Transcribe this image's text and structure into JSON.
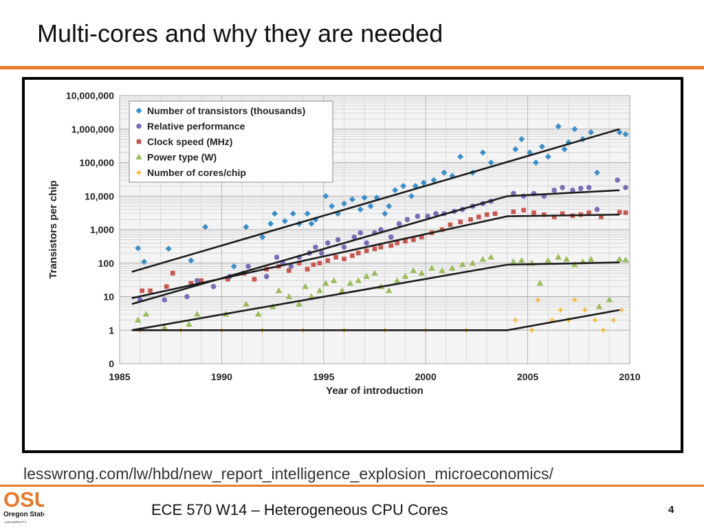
{
  "slide": {
    "title": "Multi-cores and why they are needed",
    "source": "lesswrong.com/lw/hbd/new_report_intelligence_explosion_microeconomics/",
    "footer": "ECE 570 W14 – Heterogeneous CPU Cores",
    "page_number": "4"
  },
  "logo": {
    "text": "OSU",
    "subtitle": "Oregon State",
    "university": "UNIVERSITY"
  },
  "colors": {
    "accent": "#e8782a"
  },
  "chart_data": {
    "type": "scatter",
    "xlabel": "Year of introduction",
    "ylabel": "Transistors per chip",
    "xlim": [
      1985,
      2010
    ],
    "x_ticks": [
      1985,
      1990,
      1995,
      2000,
      2005,
      2010
    ],
    "y_scale": "log",
    "y_ticks": [
      {
        "value": 0,
        "label": "0"
      },
      {
        "value": 1,
        "label": "1"
      },
      {
        "value": 10,
        "label": "10"
      },
      {
        "value": 100,
        "label": "100"
      },
      {
        "value": 1000,
        "label": "1,000"
      },
      {
        "value": 10000,
        "label": "10,000"
      },
      {
        "value": 100000,
        "label": "100,000"
      },
      {
        "value": 1000000,
        "label": "1,000,000"
      },
      {
        "value": 10000000,
        "label": "10,000,000"
      }
    ],
    "grid": true,
    "legend_position": "top-left",
    "series": [
      {
        "name": "Number of transistors (thousands)",
        "color": "#3a8fc9",
        "marker": "diamond",
        "points": [
          [
            1985.9,
            280
          ],
          [
            1986.2,
            110
          ],
          [
            1987.4,
            270
          ],
          [
            1988.5,
            120
          ],
          [
            1989.2,
            1200
          ],
          [
            1990.6,
            80
          ],
          [
            1991.2,
            1200
          ],
          [
            1992.0,
            600
          ],
          [
            1992.4,
            1500
          ],
          [
            1992.6,
            3000
          ],
          [
            1993.1,
            1800
          ],
          [
            1993.5,
            3000
          ],
          [
            1993.8,
            1500
          ],
          [
            1994.2,
            3000
          ],
          [
            1994.4,
            1500
          ],
          [
            1994.6,
            2000
          ],
          [
            1995.1,
            10000
          ],
          [
            1995.4,
            5000
          ],
          [
            1995.7,
            3000
          ],
          [
            1996.0,
            6000
          ],
          [
            1996.4,
            8000
          ],
          [
            1996.8,
            4000
          ],
          [
            1997.0,
            9000
          ],
          [
            1997.3,
            5000
          ],
          [
            1997.6,
            9000
          ],
          [
            1998.0,
            3000
          ],
          [
            1998.2,
            5000
          ],
          [
            1998.5,
            15000
          ],
          [
            1998.9,
            20000
          ],
          [
            1999.3,
            10000
          ],
          [
            1999.5,
            20000
          ],
          [
            1999.9,
            25000
          ],
          [
            2000.4,
            30000
          ],
          [
            2000.9,
            50000
          ],
          [
            2001.3,
            40000
          ],
          [
            2001.7,
            150000
          ],
          [
            2002.3,
            50000
          ],
          [
            2002.8,
            200000
          ],
          [
            2003.2,
            100000
          ],
          [
            2004.4,
            250000
          ],
          [
            2004.7,
            500000
          ],
          [
            2005.1,
            200000
          ],
          [
            2005.4,
            100000
          ],
          [
            2005.7,
            300000
          ],
          [
            2006.0,
            150000
          ],
          [
            2006.5,
            1200000
          ],
          [
            2006.8,
            250000
          ],
          [
            2007.0,
            400000
          ],
          [
            2007.3,
            1000000
          ],
          [
            2007.7,
            500000
          ],
          [
            2008.1,
            800000
          ],
          [
            2008.4,
            50000
          ],
          [
            2009.5,
            800000
          ],
          [
            2009.8,
            700000
          ]
        ]
      },
      {
        "name": "Relative performance",
        "color": "#7a6cb8",
        "marker": "circle",
        "points": [
          [
            1986.0,
            8
          ],
          [
            1987.2,
            8
          ],
          [
            1988.3,
            10
          ],
          [
            1988.8,
            30
          ],
          [
            1989.6,
            20
          ],
          [
            1990.4,
            40
          ],
          [
            1991.3,
            80
          ],
          [
            1992.2,
            40
          ],
          [
            1992.7,
            150
          ],
          [
            1993.0,
            100
          ],
          [
            1993.4,
            80
          ],
          [
            1993.8,
            150
          ],
          [
            1994.3,
            200
          ],
          [
            1994.6,
            300
          ],
          [
            1994.9,
            200
          ],
          [
            1995.2,
            400
          ],
          [
            1995.7,
            500
          ],
          [
            1996.0,
            300
          ],
          [
            1996.5,
            600
          ],
          [
            1996.8,
            800
          ],
          [
            1997.1,
            400
          ],
          [
            1997.5,
            800
          ],
          [
            1997.8,
            1000
          ],
          [
            1998.3,
            600
          ],
          [
            1998.7,
            1500
          ],
          [
            1999.1,
            2000
          ],
          [
            1999.6,
            2500
          ],
          [
            2000.1,
            2500
          ],
          [
            2000.5,
            3000
          ],
          [
            2000.9,
            3000
          ],
          [
            2001.4,
            3500
          ],
          [
            2001.8,
            4000
          ],
          [
            2002.3,
            5000
          ],
          [
            2002.8,
            6000
          ],
          [
            2003.2,
            7000
          ],
          [
            2004.3,
            12000
          ],
          [
            2004.8,
            10000
          ],
          [
            2005.3,
            12000
          ],
          [
            2005.8,
            10000
          ],
          [
            2006.3,
            15000
          ],
          [
            2006.7,
            18000
          ],
          [
            2007.2,
            15000
          ],
          [
            2007.6,
            17000
          ],
          [
            2008.0,
            18000
          ],
          [
            2008.4,
            4000
          ],
          [
            2009.4,
            30000
          ],
          [
            2009.8,
            18000
          ]
        ]
      },
      {
        "name": "Clock speed (MHz)",
        "color": "#c9574e",
        "marker": "square",
        "points": [
          [
            1986.1,
            15
          ],
          [
            1986.5,
            15
          ],
          [
            1987.3,
            20
          ],
          [
            1987.6,
            50
          ],
          [
            1988.5,
            25
          ],
          [
            1989.0,
            30
          ],
          [
            1990.3,
            33
          ],
          [
            1991.1,
            50
          ],
          [
            1991.6,
            33
          ],
          [
            1992.2,
            66
          ],
          [
            1992.8,
            80
          ],
          [
            1993.3,
            60
          ],
          [
            1993.8,
            100
          ],
          [
            1994.2,
            66
          ],
          [
            1994.5,
            90
          ],
          [
            1994.8,
            100
          ],
          [
            1995.2,
            120
          ],
          [
            1995.6,
            150
          ],
          [
            1996.0,
            133
          ],
          [
            1996.4,
            166
          ],
          [
            1996.7,
            200
          ],
          [
            1997.1,
            233
          ],
          [
            1997.5,
            266
          ],
          [
            1997.8,
            300
          ],
          [
            1998.3,
            333
          ],
          [
            1998.6,
            400
          ],
          [
            1999.0,
            450
          ],
          [
            1999.4,
            500
          ],
          [
            1999.8,
            600
          ],
          [
            2000.3,
            800
          ],
          [
            2000.8,
            1000
          ],
          [
            2001.2,
            1400
          ],
          [
            2001.7,
            1700
          ],
          [
            2002.2,
            2000
          ],
          [
            2002.6,
            2400
          ],
          [
            2003.0,
            2800
          ],
          [
            2003.4,
            3000
          ],
          [
            2004.3,
            3400
          ],
          [
            2004.8,
            3800
          ],
          [
            2005.3,
            3200
          ],
          [
            2005.8,
            2800
          ],
          [
            2006.3,
            2400
          ],
          [
            2006.7,
            3000
          ],
          [
            2007.2,
            2600
          ],
          [
            2007.6,
            2800
          ],
          [
            2008.0,
            3200
          ],
          [
            2008.6,
            2400
          ],
          [
            2009.5,
            3300
          ],
          [
            2009.8,
            3200
          ]
        ]
      },
      {
        "name": "Power type (W)",
        "color": "#9cbb59",
        "marker": "triangle",
        "points": [
          [
            1985.9,
            2
          ],
          [
            1986.3,
            3
          ],
          [
            1987.2,
            1.2
          ],
          [
            1988.4,
            1.5
          ],
          [
            1988.8,
            3
          ],
          [
            1990.2,
            3
          ],
          [
            1991.2,
            6
          ],
          [
            1991.8,
            3
          ],
          [
            1992.5,
            5
          ],
          [
            1992.8,
            15
          ],
          [
            1993.3,
            10
          ],
          [
            1993.8,
            6
          ],
          [
            1994.1,
            20
          ],
          [
            1994.4,
            10
          ],
          [
            1994.8,
            15
          ],
          [
            1995.1,
            25
          ],
          [
            1995.5,
            30
          ],
          [
            1995.9,
            15
          ],
          [
            1996.3,
            25
          ],
          [
            1996.7,
            30
          ],
          [
            1997.1,
            40
          ],
          [
            1997.5,
            50
          ],
          [
            1997.8,
            20
          ],
          [
            1998.2,
            15
          ],
          [
            1998.6,
            30
          ],
          [
            1999.0,
            40
          ],
          [
            1999.4,
            60
          ],
          [
            1999.8,
            50
          ],
          [
            2000.3,
            70
          ],
          [
            2000.8,
            60
          ],
          [
            2001.3,
            70
          ],
          [
            2001.8,
            90
          ],
          [
            2002.3,
            100
          ],
          [
            2002.8,
            130
          ],
          [
            2003.2,
            150
          ],
          [
            2004.3,
            110
          ],
          [
            2004.7,
            120
          ],
          [
            2005.2,
            100
          ],
          [
            2005.6,
            25
          ],
          [
            2006.0,
            120
          ],
          [
            2006.5,
            150
          ],
          [
            2006.9,
            130
          ],
          [
            2007.3,
            90
          ],
          [
            2007.7,
            110
          ],
          [
            2008.1,
            130
          ],
          [
            2008.5,
            5
          ],
          [
            2009.0,
            8
          ],
          [
            2009.5,
            130
          ],
          [
            2009.8,
            125
          ]
        ]
      },
      {
        "name": "Number of cores/chip",
        "color": "#f5b835",
        "marker": "plus",
        "points": [
          [
            1986,
            1
          ],
          [
            1988,
            1
          ],
          [
            1990,
            1
          ],
          [
            1992,
            1
          ],
          [
            1994,
            1
          ],
          [
            1996,
            1
          ],
          [
            1998,
            1
          ],
          [
            2000,
            1
          ],
          [
            2002,
            1
          ],
          [
            2004.4,
            2
          ],
          [
            2005.2,
            1
          ],
          [
            2005.5,
            8
          ],
          [
            2006.2,
            2
          ],
          [
            2006.6,
            4
          ],
          [
            2007.0,
            2
          ],
          [
            2007.3,
            8
          ],
          [
            2007.8,
            4
          ],
          [
            2008.3,
            2
          ],
          [
            2008.7,
            1
          ],
          [
            2009.2,
            2
          ],
          [
            2009.6,
            4
          ]
        ]
      }
    ],
    "trend_lines": [
      {
        "series": "Number of transistors (thousands)",
        "points": [
          [
            1985.6,
            55
          ],
          [
            2009.5,
            1000000
          ]
        ]
      },
      {
        "series": "Relative performance",
        "points": [
          [
            1985.6,
            6
          ],
          [
            2004.0,
            10000
          ],
          [
            2009.5,
            15000
          ]
        ]
      },
      {
        "series": "Clock speed (MHz)",
        "points": [
          [
            1985.6,
            9
          ],
          [
            2004.0,
            2500
          ],
          [
            2009.5,
            2800
          ]
        ]
      },
      {
        "series": "Power type (W)",
        "points": [
          [
            1985.6,
            1
          ],
          [
            2004.0,
            90
          ],
          [
            2009.5,
            105
          ]
        ]
      },
      {
        "series": "Number of cores/chip",
        "points": [
          [
            1985.6,
            1
          ],
          [
            2004.0,
            1
          ],
          [
            2009.5,
            4
          ]
        ]
      }
    ]
  }
}
